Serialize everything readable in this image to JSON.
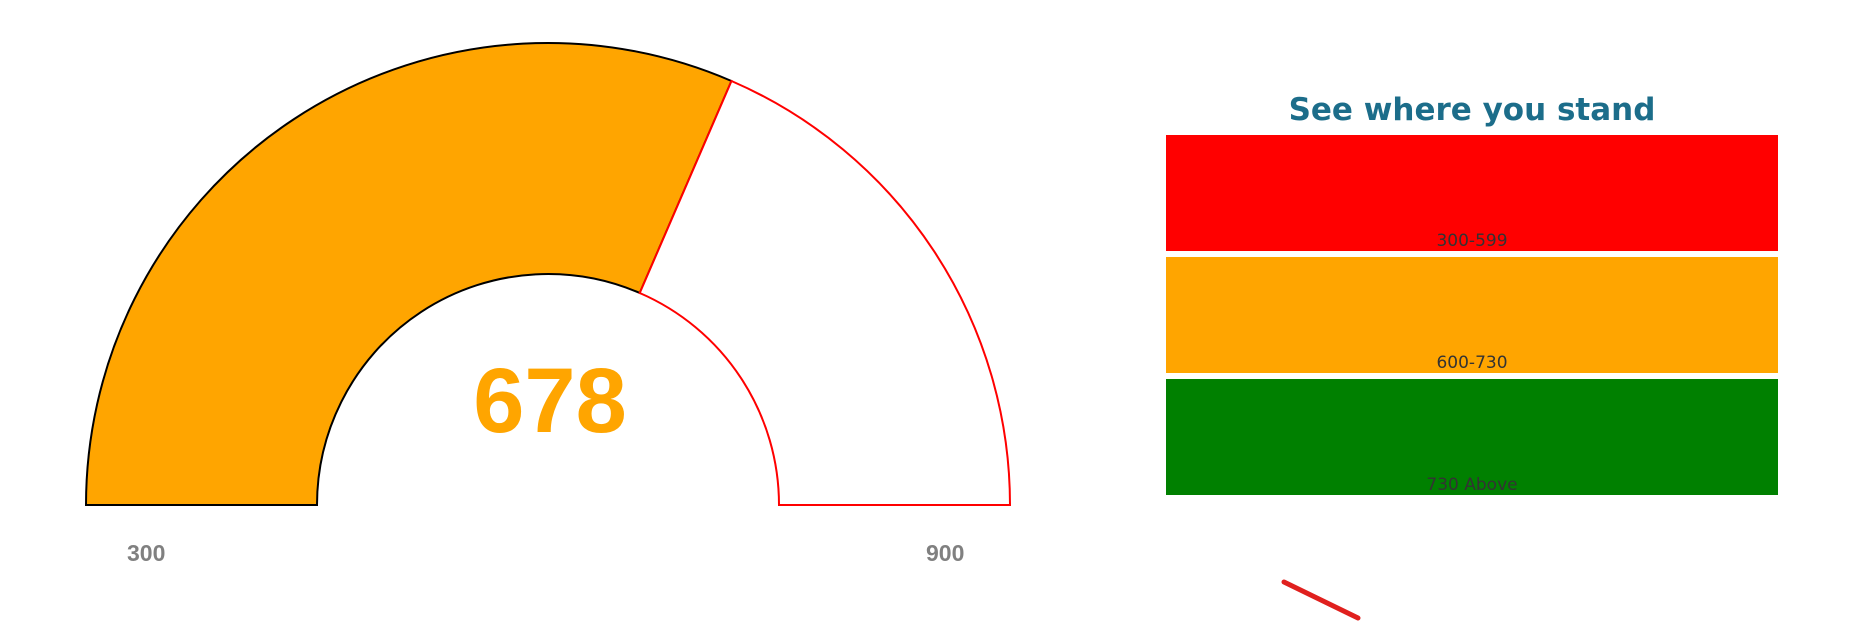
{
  "gauge": {
    "value": "678",
    "min_label": "300",
    "max_label": "900",
    "min": 300,
    "max": 900,
    "current": 678,
    "fill_color": "#FFA500",
    "value_color": "#FFA500",
    "remaining_outline_color": "#FF0000",
    "filled_outline_color": "#000000"
  },
  "legend": {
    "title": "See where you stand",
    "bands": [
      {
        "label": "300-599",
        "color": "#FF0000"
      },
      {
        "label": "600-730",
        "color": "#FFA500"
      },
      {
        "label": "730 Above",
        "color": "#008000"
      }
    ]
  },
  "decor": {
    "stray_mark_color": "#E0201E"
  }
}
